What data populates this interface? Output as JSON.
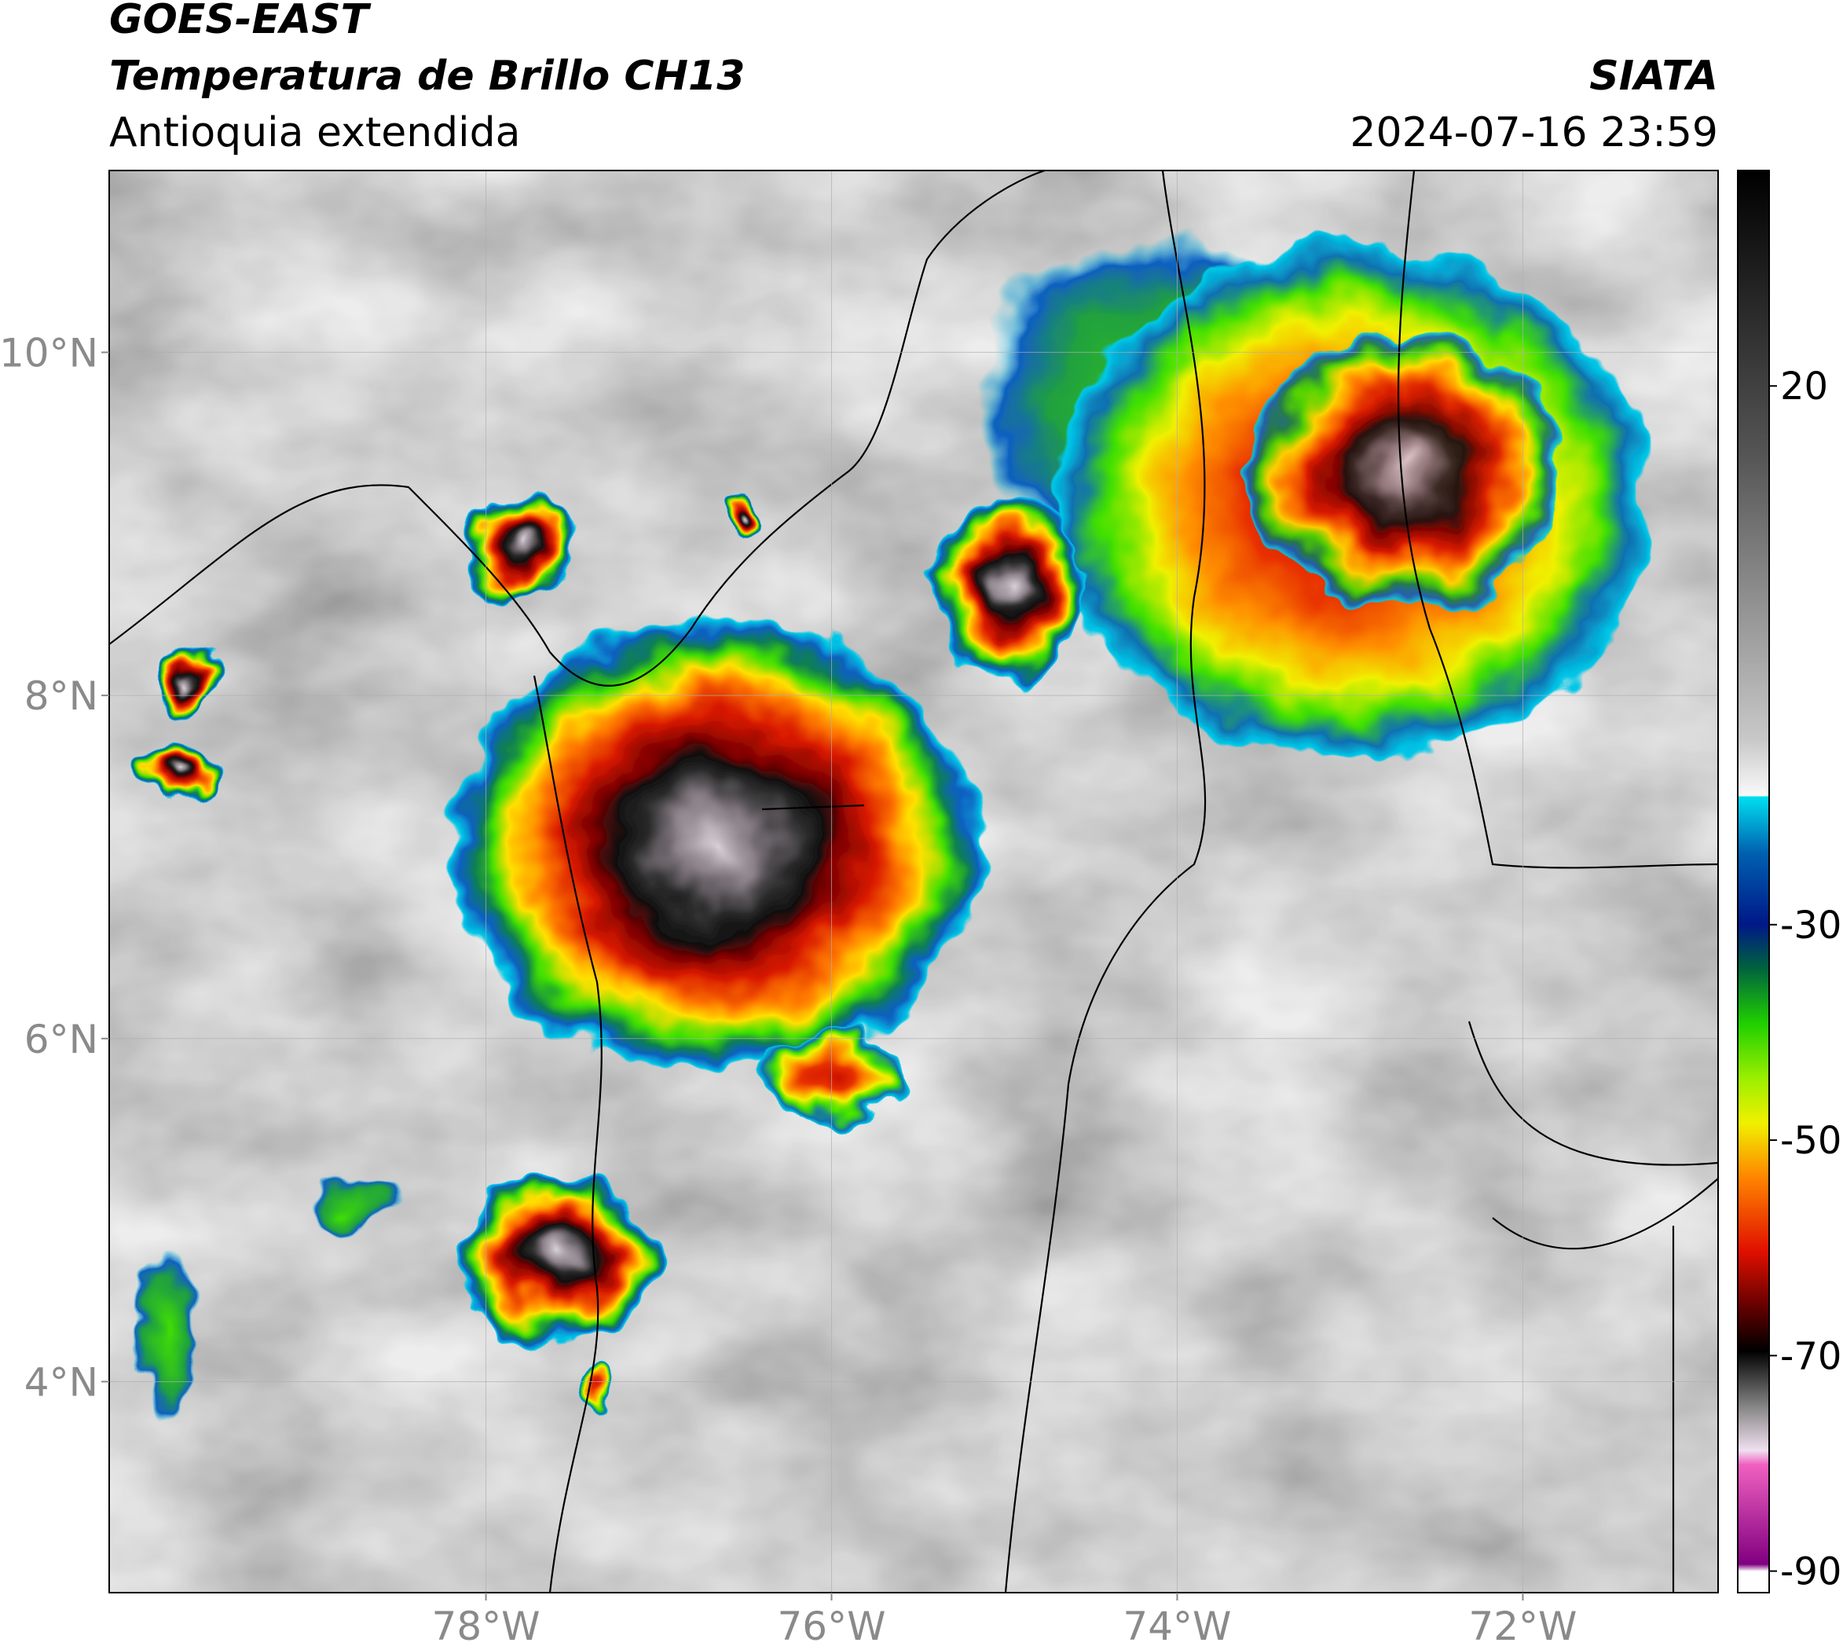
{
  "header": {
    "satellite": "GOES-EAST",
    "product": "Temperatura de Brillo CH13",
    "region": "Antioquia extendida",
    "source": "SIATA",
    "datetime": "2024-07-16 23:59"
  },
  "map": {
    "xlim": [
      -80.18,
      -70.87
    ],
    "ylim": [
      2.77,
      11.06
    ],
    "xticks": [
      {
        "value": -78,
        "label": "78°W"
      },
      {
        "value": -76,
        "label": "76°W"
      },
      {
        "value": -74,
        "label": "74°W"
      },
      {
        "value": -72,
        "label": "72°W"
      }
    ],
    "yticks": [
      {
        "value": 4,
        "label": "4°N"
      },
      {
        "value": 6,
        "label": "6°N"
      },
      {
        "value": 8,
        "label": "8°N"
      },
      {
        "value": 10,
        "label": "10°N"
      }
    ]
  },
  "colorbar": {
    "lim": [
      -92,
      40
    ],
    "ticks": [
      20,
      -30,
      -50,
      -70,
      -90
    ]
  }
}
